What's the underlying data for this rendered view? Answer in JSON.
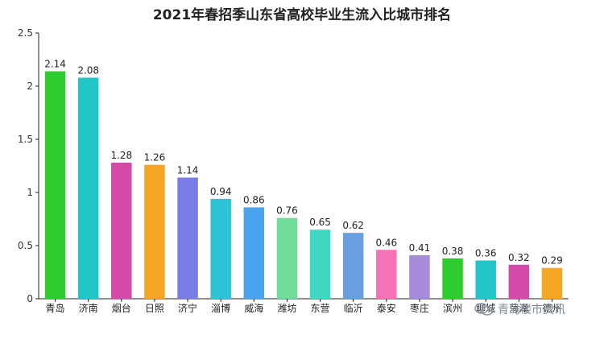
{
  "chart_data": {
    "type": "bar",
    "title": "2021年春招季山东省高校毕业生流入比城市排名",
    "categories": [
      "青岛",
      "济南",
      "烟台",
      "日照",
      "济宁",
      "淄博",
      "威海",
      "潍坊",
      "东营",
      "临沂",
      "泰安",
      "枣庄",
      "滨州",
      "聊城",
      "菏泽",
      "德州"
    ],
    "values": [
      2.14,
      2.08,
      1.28,
      1.26,
      1.14,
      0.94,
      0.86,
      0.76,
      0.65,
      0.62,
      0.46,
      0.41,
      0.38,
      0.36,
      0.32,
      0.29
    ],
    "value_labels": [
      "2.14",
      "2.08",
      "1.28",
      "1.26",
      "1.14",
      "0.94",
      "0.86",
      "0.76",
      "0.65",
      "0.62",
      "0.46",
      "0.41",
      "0.38",
      "0.36",
      "0.32",
      "0.29"
    ],
    "colors": [
      "#2ecc2e",
      "#22c6c6",
      "#d34aa8",
      "#f5a623",
      "#7b7be8",
      "#2ec4d6",
      "#4aa3ee",
      "#6fdc9a",
      "#3ed8c3",
      "#6a9fdf",
      "#f472b6",
      "#a78bdb",
      "#2ecc2e",
      "#22c6c6",
      "#d34aa8",
      "#f5a623"
    ],
    "ylim": [
      0,
      2.5
    ],
    "yticks": [
      "0",
      "0.5",
      "1",
      "1.5",
      "2",
      "2.5"
    ],
    "grid": false,
    "xlabel": "",
    "ylabel": ""
  },
  "watermark": {
    "text": "青岛楼市资讯",
    "icon": "wechat-icon"
  }
}
